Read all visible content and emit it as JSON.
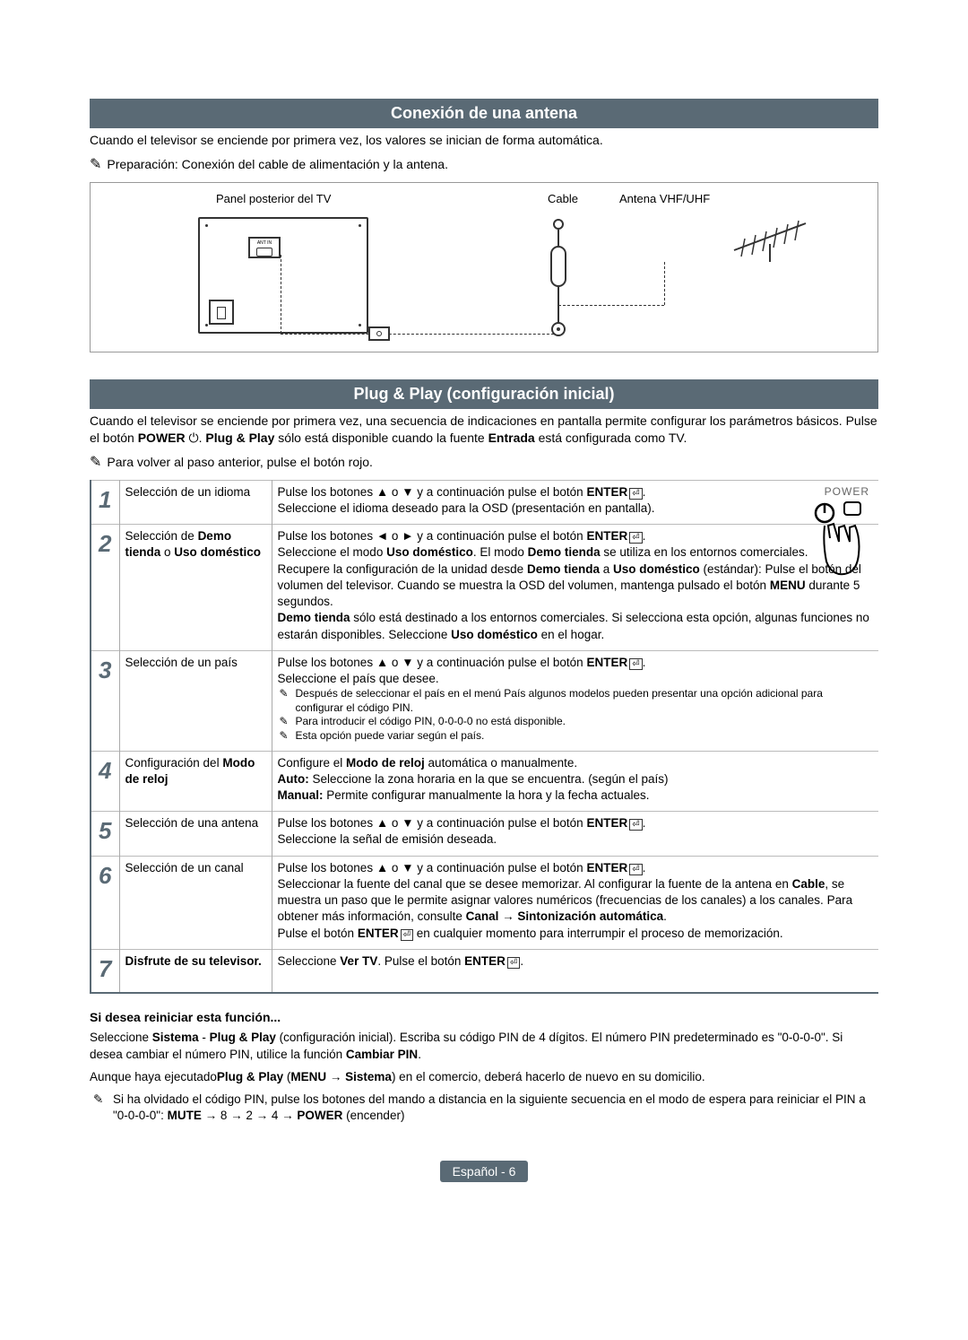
{
  "section1_title": "Conexión de una antena",
  "section1_intro": "Cuando el televisor se enciende por primera vez, los valores se inician de forma automática.",
  "section1_note": "Preparación: Conexión del cable de alimentación y la antena.",
  "diagram": {
    "panel_label": "Panel posterior del TV",
    "cable_label": "Cable",
    "antenna_label": "Antena VHF/UHF",
    "ant_in": "ANT IN"
  },
  "section2_title": "Plug & Play (configuración inicial)",
  "section2_intro": "Cuando el televisor se enciende por primera vez, una secuencia de indicaciones en pantalla permite configurar los parámetros básicos. Pulse el botón POWER ⏻. Plug & Play sólo está disponible cuando la fuente Entrada está configurada como TV.",
  "section2_note": "Para volver al paso anterior, pulse el botón rojo.",
  "power_label": "POWER",
  "steps": [
    {
      "num": "1",
      "title": "Selección de un idioma",
      "desc": "Pulse los botones ▲ o ▼ y a continuación pulse el botón ENTER⏎.\nSeleccione el idioma deseado para la OSD (presentación en pantalla)."
    },
    {
      "num": "2",
      "title_html": "Selección de <b>Demo tienda</b> o <b>Uso doméstico</b>",
      "desc_html": "Pulse los botones ◄ o ► y a continuación pulse el botón <b>ENTER</b><span class=\"enter-icon\"></span>.<br>Seleccione el modo <b>Uso doméstico</b>. El modo <b>Demo tienda</b> se utiliza en los entornos comerciales.<br>Recupere la configuración de la unidad desde <b>Demo tienda</b> a <b>Uso doméstico</b> (estándar): Pulse el botón del volumen del televisor. Cuando se muestra la OSD del volumen, mantenga pulsado el botón <b>MENU</b> durante 5 segundos.<br><b>Demo tienda</b> sólo está destinado a los entornos comerciales. Si selecciona esta opción, algunas funciones no estarán disponibles. Seleccione <b>Uso doméstico</b> en el hogar."
    },
    {
      "num": "3",
      "title": "Selección de un país",
      "desc_html": "Pulse los botones ▲ o ▼ y a continuación pulse el botón <b>ENTER</b><span class=\"enter-icon\"></span>.<br>Seleccione el país que desee.",
      "subnotes": [
        "Después de seleccionar el país en el menú País algunos modelos pueden presentar una opción adicional para configurar el código PIN.",
        "Para introducir el código PIN, 0-0-0-0 no está disponible.",
        "Esta opción puede variar según el país."
      ]
    },
    {
      "num": "4",
      "title_html": "Configuración del <b>Modo de reloj</b>",
      "desc_html": "Configure el <b>Modo de reloj</b> automática o manualmente.<br><b>Auto:</b> Seleccione la zona horaria en la que se encuentra. (según el país)<br><b>Manual:</b> Permite configurar manualmente la hora y la fecha actuales."
    },
    {
      "num": "5",
      "title": "Selección de una antena",
      "desc_html": "Pulse los botones ▲ o ▼ y a continuación pulse el botón <b>ENTER</b><span class=\"enter-icon\"></span>.<br>Seleccione la señal de emisión deseada."
    },
    {
      "num": "6",
      "title": "Selección de un canal",
      "desc_html": "Pulse los botones ▲ o ▼ y a continuación pulse el botón <b>ENTER</b><span class=\"enter-icon\"></span>.<br>Seleccionar la fuente del canal que se desee memorizar. Al configurar la fuente de la antena en <b>Cable</b>, se muestra un paso que le permite asignar valores numéricos (frecuencias de los canales) a los canales. Para obtener más información, consulte <b>Canal → Sintonización automática</b>.<br>Pulse el botón <b>ENTER</b><span class=\"enter-icon\"></span> en cualquier momento para interrumpir el proceso de memorización."
    },
    {
      "num": "7",
      "title_html": "<b>Disfrute de su televisor.</b>",
      "desc_html": "Seleccione <b>Ver TV</b>. Pulse el botón <b>ENTER</b><span class=\"enter-icon\"></span>."
    }
  ],
  "reset_heading": "Si desea reiniciar esta función...",
  "reset_text_html": "Seleccione <b>Sistema</b> - <b>Plug & Play</b> (configuración inicial). Escriba su código PIN de 4 dígitos. El número PIN predeterminado es \"0-0-0-0\". Si desea cambiar el número PIN, utilice la función <b>Cambiar PIN</b>.",
  "reset_text2_html": "Aunque haya ejecutado<b>Plug & Play</b> (<b>MENU → Sistema</b>) en el comercio, deberá hacerlo de nuevo en su domicilio.",
  "reset_note_html": "Si ha olvidado el código PIN, pulse los botones del mando a distancia en la siguiente secuencia en el modo de espera para reiniciar el PIN a \"0-0-0-0\": <b>MUTE</b> → 8 → 2 → 4 → <b>POWER</b> (encender)",
  "footer": "Español - 6",
  "colors": {
    "header_bg": "#5a6a75",
    "text": "#000000",
    "border": "#bbbbbb"
  }
}
